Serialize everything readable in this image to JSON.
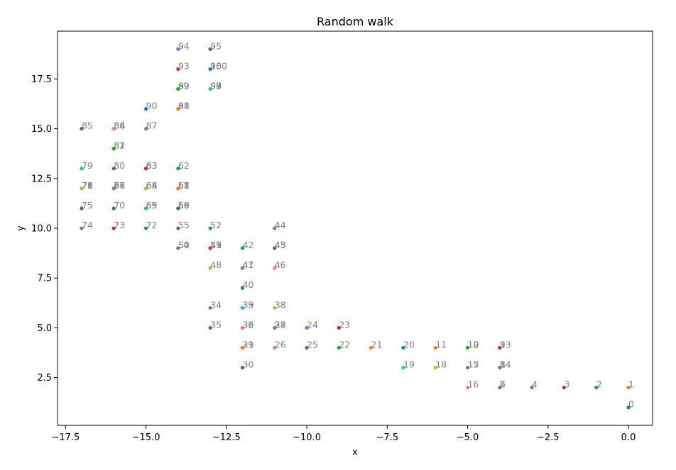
{
  "chart_data": {
    "type": "scatter",
    "title": "Random walk",
    "xlabel": "x",
    "ylabel": "y",
    "xlim": [
      -17.75,
      0.75
    ],
    "ylim": [
      0.1,
      19.9
    ],
    "xticks": [
      -17.5,
      -15.0,
      -12.5,
      -10.0,
      -7.5,
      -5.0,
      -2.5,
      0.0
    ],
    "xtick_labels": [
      "−17.5",
      "−15.0",
      "−12.5",
      "−10.0",
      "−7.5",
      "−5.0",
      "−2.5",
      "0.0"
    ],
    "yticks": [
      2.5,
      5.0,
      7.5,
      10.0,
      12.5,
      15.0,
      17.5
    ],
    "ytick_labels": [
      "2.5",
      "5.0",
      "7.5",
      "10.0",
      "12.5",
      "15.0",
      "17.5"
    ],
    "grid": false,
    "colors": [
      "#1f77b4",
      "#ff7f0e",
      "#2ca02c",
      "#d62728",
      "#9467bd",
      "#8c564b",
      "#e377c2",
      "#7f7f7f",
      "#bcbd22",
      "#17becf"
    ],
    "x": [
      0,
      0,
      -1,
      -2,
      -3,
      -4,
      -4,
      -4,
      -4,
      -4,
      -5,
      -6,
      -5,
      -4,
      -4,
      -5,
      -5,
      -5,
      -6,
      -7,
      -7,
      -8,
      -9,
      -9,
      -10,
      -10,
      -11,
      -11,
      -11,
      -12,
      -12,
      -12,
      -12,
      -12,
      -13,
      -13,
      -12,
      -11,
      -11,
      -12,
      -12,
      -12,
      -12,
      -11,
      -11,
      -11,
      -11,
      -12,
      -13,
      -13,
      -14,
      -13,
      -13,
      -13,
      -14,
      -14,
      -14,
      -14,
      -14,
      -14,
      -14,
      -14,
      -14,
      -15,
      -15,
      -15,
      -16,
      -16,
      -15,
      -15,
      -16,
      -17,
      -15,
      -16,
      -17,
      -17,
      -17,
      -16,
      -17,
      -17,
      -16,
      -16,
      -16,
      -15,
      -16,
      -17,
      -16,
      -15,
      -14,
      -14,
      -15,
      -14,
      -14,
      -14,
      -14,
      -13,
      -13,
      -13,
      -13,
      -13,
      -13
    ],
    "y": [
      1,
      2,
      2,
      2,
      2,
      3,
      2,
      2,
      3,
      4,
      4,
      4,
      4,
      4,
      3,
      3,
      2,
      3,
      3,
      3,
      4,
      4,
      4,
      5,
      5,
      4,
      4,
      5,
      5,
      4,
      3,
      4,
      5,
      6,
      6,
      5,
      5,
      5,
      6,
      6,
      7,
      8,
      9,
      9,
      10,
      9,
      8,
      8,
      8,
      9,
      9,
      9,
      10,
      9,
      9,
      10,
      11,
      12,
      12,
      11,
      11,
      12,
      13,
      13,
      12,
      11,
      12,
      12,
      12,
      11,
      11,
      12,
      10,
      10,
      10,
      11,
      12,
      12,
      12,
      13,
      13,
      14,
      14,
      13,
      15,
      15,
      15,
      15,
      16,
      17,
      16,
      16,
      17,
      18,
      19,
      19,
      18,
      17,
      17,
      17,
      18
    ],
    "labels": [
      "0",
      "1",
      "2",
      "3",
      "4",
      "5",
      "6",
      "7",
      "8",
      "9",
      "10",
      "11",
      "12",
      "13",
      "14",
      "15",
      "16",
      "17",
      "18",
      "19",
      "20",
      "21",
      "22",
      "23",
      "24",
      "25",
      "26",
      "27",
      "28",
      "29",
      "30",
      "31",
      "32",
      "33",
      "34",
      "35",
      "36",
      "37",
      "38",
      "39",
      "40",
      "41",
      "42",
      "43",
      "44",
      "45",
      "46",
      "47",
      "48",
      "49",
      "50",
      "51",
      "52",
      "53",
      "54",
      "55",
      "56",
      "57",
      "58",
      "59",
      "60",
      "61",
      "62",
      "63",
      "64",
      "65",
      "66",
      "67",
      "68",
      "69",
      "70",
      "71",
      "72",
      "73",
      "74",
      "75",
      "76",
      "77",
      "78",
      "79",
      "80",
      "81",
      "82",
      "83",
      "84",
      "85",
      "86",
      "87",
      "88",
      "89",
      "90",
      "91",
      "92",
      "93",
      "94",
      "95",
      "96",
      "97",
      "98",
      "99",
      "100"
    ]
  }
}
